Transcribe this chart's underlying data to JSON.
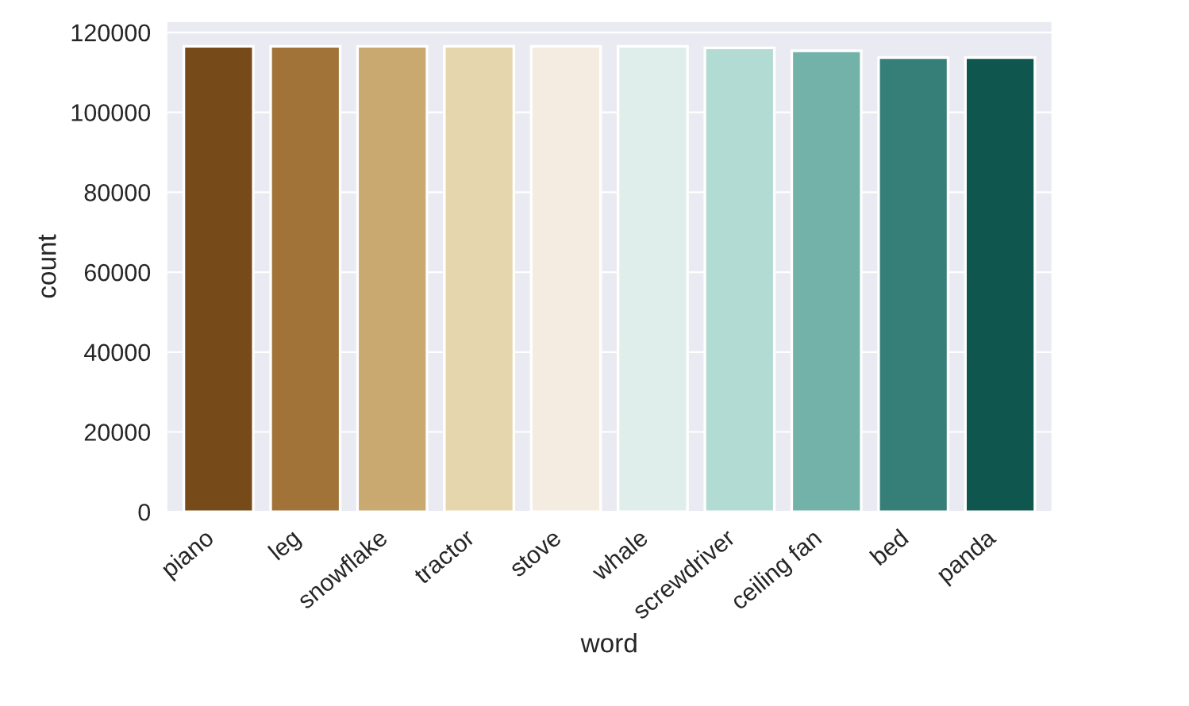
{
  "chart_data": {
    "type": "bar",
    "xlabel": "word",
    "ylabel": "count",
    "categories": [
      "piano",
      "leg",
      "snowflake",
      "tractor",
      "stove",
      "whale",
      "screwdriver",
      "ceiling fan",
      "bed",
      "panda"
    ],
    "values": [
      116500,
      116500,
      116500,
      116500,
      116500,
      116500,
      116100,
      115400,
      113700,
      113700
    ],
    "colors": [
      "#774a19",
      "#a27339",
      "#c9a970",
      "#e6d6ad",
      "#f4ece0",
      "#e0eeeb",
      "#b2dbd3",
      "#72b2a9",
      "#367f79",
      "#0e564e"
    ],
    "ylim": [
      0,
      122800
    ],
    "yticks": [
      0,
      20000,
      40000,
      60000,
      80000,
      100000,
      120000
    ],
    "grid": "y"
  }
}
